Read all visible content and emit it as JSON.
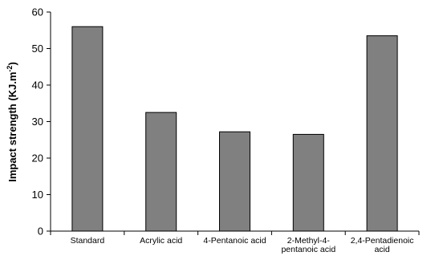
{
  "chart_data": {
    "type": "bar",
    "categories": [
      [
        "Standard"
      ],
      [
        "Acrylic acid"
      ],
      [
        "4-Pentanoic acid"
      ],
      [
        "2-Methyl-4-",
        "pentanoic acid"
      ],
      [
        "2,4-Pentadienoic",
        "acid"
      ]
    ],
    "values": [
      56,
      32.5,
      27.2,
      26.5,
      53.5
    ],
    "ylabel": "Impact strength (KJ.m",
    "ylabel_superscript": "-2",
    "ylabel_close": ")",
    "ylim": [
      0,
      60
    ],
    "yticks": [
      0,
      10,
      20,
      30,
      40,
      50,
      60
    ],
    "bar_color": "#808080",
    "grid": false
  }
}
